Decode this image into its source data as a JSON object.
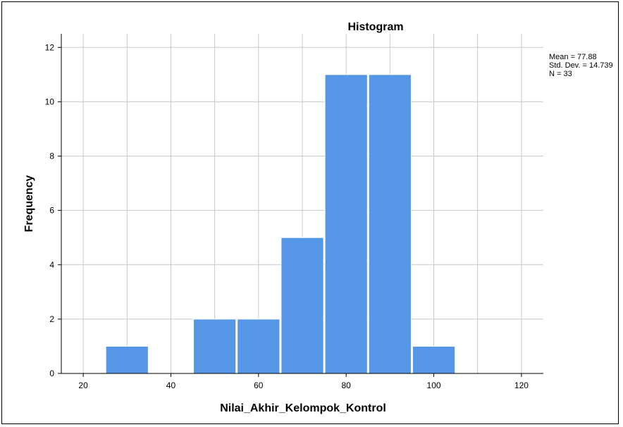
{
  "chart_data": {
    "type": "bar",
    "title": "Histogram",
    "xlabel": "Nilai_Akhir_Kelompok_Kontrol",
    "ylabel": "Frequency",
    "bins": [
      {
        "start": 25,
        "end": 35,
        "count": 1
      },
      {
        "start": 35,
        "end": 45,
        "count": 0
      },
      {
        "start": 45,
        "end": 55,
        "count": 2
      },
      {
        "start": 55,
        "end": 65,
        "count": 2
      },
      {
        "start": 65,
        "end": 75,
        "count": 5
      },
      {
        "start": 75,
        "end": 85,
        "count": 11
      },
      {
        "start": 85,
        "end": 95,
        "count": 11
      },
      {
        "start": 95,
        "end": 105,
        "count": 1
      }
    ],
    "xlim": [
      15,
      125
    ],
    "ylim": [
      0,
      12.5
    ],
    "xticks": [
      20,
      40,
      60,
      80,
      100,
      120
    ],
    "yticks": [
      0,
      2,
      4,
      6,
      8,
      10,
      12
    ],
    "x_gridlines": [
      20,
      30,
      40,
      50,
      60,
      70,
      80,
      90,
      100,
      110,
      120
    ],
    "grid": true,
    "bar_color": "#5597e6",
    "stats": {
      "mean": "Mean = 77.88",
      "std_dev": "Std. Dev. = 14.739",
      "n": "N = 33"
    },
    "legend_position": "top-right"
  }
}
